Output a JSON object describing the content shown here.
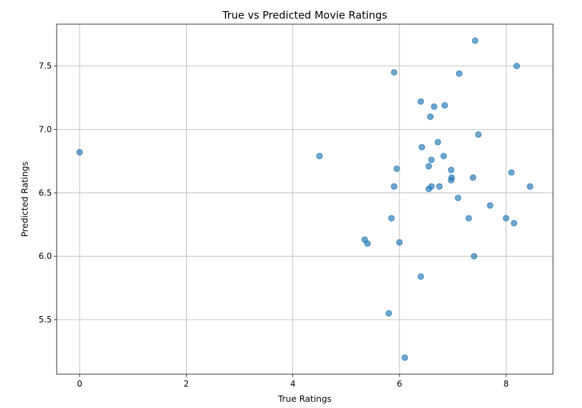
{
  "chart_data": {
    "type": "scatter",
    "title": "True vs Predicted Movie Ratings",
    "xlabel": "True Ratings",
    "ylabel": "Predicted Ratings",
    "xlim": [
      -0.43,
      8.88
    ],
    "ylim": [
      5.07,
      7.83
    ],
    "grid": true,
    "x_ticks": [
      0,
      2,
      4,
      6,
      8
    ],
    "x_tick_labels": [
      "0",
      "2",
      "4",
      "6",
      "8"
    ],
    "y_ticks": [
      5.5,
      6.0,
      6.5,
      7.0,
      7.5
    ],
    "y_tick_labels": [
      "5.5",
      "6.0",
      "6.5",
      "7.0",
      "7.5"
    ],
    "color": "#1f77b4",
    "points": [
      {
        "x": 0.0,
        "y": 6.82
      },
      {
        "x": 4.5,
        "y": 6.79
      },
      {
        "x": 5.35,
        "y": 6.13
      },
      {
        "x": 5.4,
        "y": 6.1
      },
      {
        "x": 5.8,
        "y": 5.55
      },
      {
        "x": 5.85,
        "y": 6.3
      },
      {
        "x": 5.9,
        "y": 7.45
      },
      {
        "x": 5.9,
        "y": 6.55
      },
      {
        "x": 5.95,
        "y": 6.69
      },
      {
        "x": 6.0,
        "y": 6.11
      },
      {
        "x": 6.1,
        "y": 5.2
      },
      {
        "x": 6.4,
        "y": 7.22
      },
      {
        "x": 6.4,
        "y": 5.84
      },
      {
        "x": 6.42,
        "y": 6.86
      },
      {
        "x": 6.55,
        "y": 6.71
      },
      {
        "x": 6.55,
        "y": 6.53
      },
      {
        "x": 6.58,
        "y": 7.1
      },
      {
        "x": 6.6,
        "y": 6.76
      },
      {
        "x": 6.6,
        "y": 6.55
      },
      {
        "x": 6.65,
        "y": 7.18
      },
      {
        "x": 6.72,
        "y": 6.9
      },
      {
        "x": 6.75,
        "y": 6.55
      },
      {
        "x": 6.83,
        "y": 6.79
      },
      {
        "x": 6.85,
        "y": 7.19
      },
      {
        "x": 6.97,
        "y": 6.68
      },
      {
        "x": 6.97,
        "y": 6.6
      },
      {
        "x": 6.98,
        "y": 6.62
      },
      {
        "x": 7.1,
        "y": 6.46
      },
      {
        "x": 7.12,
        "y": 7.44
      },
      {
        "x": 7.3,
        "y": 6.3
      },
      {
        "x": 7.38,
        "y": 6.62
      },
      {
        "x": 7.4,
        "y": 6.0
      },
      {
        "x": 7.42,
        "y": 7.7
      },
      {
        "x": 7.48,
        "y": 6.96
      },
      {
        "x": 7.7,
        "y": 6.4
      },
      {
        "x": 8.0,
        "y": 6.3
      },
      {
        "x": 8.1,
        "y": 6.66
      },
      {
        "x": 8.15,
        "y": 6.26
      },
      {
        "x": 8.2,
        "y": 7.5
      },
      {
        "x": 8.45,
        "y": 6.55
      }
    ]
  }
}
